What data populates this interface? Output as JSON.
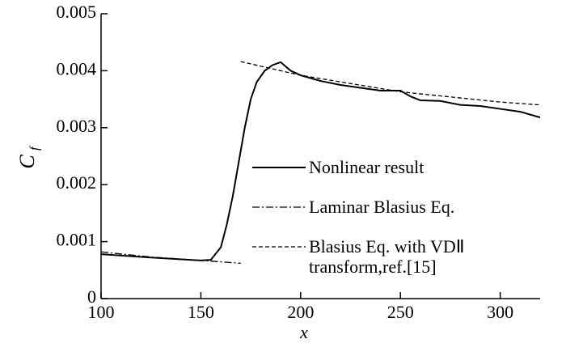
{
  "chart_data": {
    "type": "line",
    "xlabel": "x",
    "ylabel": "C",
    "ylabel_subscript": "f",
    "xlim": [
      100,
      320
    ],
    "xticks": [
      100,
      150,
      200,
      250,
      300
    ],
    "ylim": [
      0,
      0.005
    ],
    "yticks": [
      0,
      0.001,
      0.002,
      0.003,
      0.004,
      0.005
    ],
    "series": [
      {
        "name": "Nonlinear result",
        "color": "#000000",
        "linestyle": "solid",
        "x": [
          100,
          125,
          150,
          155,
          160,
          163,
          166,
          169,
          172,
          175,
          178,
          182,
          186,
          190,
          195,
          200,
          210,
          220,
          230,
          240,
          250,
          255,
          260,
          270,
          280,
          290,
          300,
          310,
          320
        ],
        "values": [
          0.00078,
          0.00072,
          0.00067,
          0.00068,
          0.0009,
          0.0013,
          0.0018,
          0.0024,
          0.003,
          0.0035,
          0.0038,
          0.004,
          0.0041,
          0.00415,
          0.004,
          0.00392,
          0.00382,
          0.00375,
          0.0037,
          0.00365,
          0.00365,
          0.00355,
          0.00348,
          0.00347,
          0.0034,
          0.00338,
          0.00333,
          0.00328,
          0.00318
        ]
      },
      {
        "name": "Laminar Blasius Eq.",
        "color": "#000000",
        "linestyle": "dashdot",
        "x": [
          100,
          125,
          150,
          170
        ],
        "values": [
          0.00082,
          0.00073,
          0.00067,
          0.00062
        ]
      },
      {
        "name": "Blasius Eq. with VDⅡ transform,ref.[15]",
        "color": "#000000",
        "linestyle": "dashed",
        "x": [
          170,
          200,
          250,
          300,
          320
        ],
        "values": [
          0.00416,
          0.00392,
          0.00363,
          0.00345,
          0.0034
        ]
      }
    ]
  }
}
